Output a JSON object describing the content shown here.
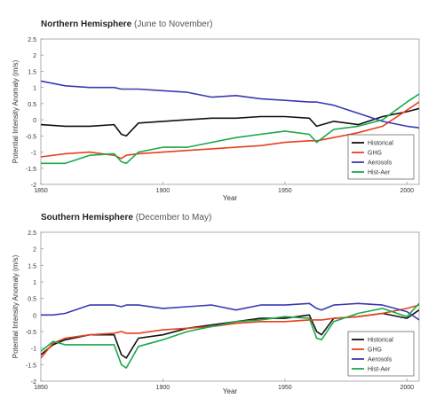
{
  "chart_data": [
    {
      "type": "line",
      "title": "Northern Hemisphere",
      "subtitle": "(June to November)",
      "xlabel": "Year",
      "ylabel": "Potential Intensity Anomaly  (m/s)",
      "xlim": [
        1850,
        2005
      ],
      "ylim": [
        -2,
        2.5
      ],
      "xticks": [
        "1850",
        "1900",
        "1950",
        "2000"
      ],
      "yticks": [
        "-2",
        "-1.5",
        "-1",
        "-0.5",
        "0",
        "0.5",
        "1",
        "1.5",
        "2",
        "2.5"
      ],
      "legend_position": "bottom-right",
      "x": [
        1850,
        1860,
        1870,
        1880,
        1883,
        1885,
        1890,
        1900,
        1910,
        1920,
        1930,
        1940,
        1950,
        1960,
        1963,
        1970,
        1980,
        1990,
        2000,
        2005
      ],
      "series": [
        {
          "name": "Historical",
          "color": "#111111",
          "values": [
            -0.15,
            -0.2,
            -0.2,
            -0.15,
            -0.45,
            -0.5,
            -0.1,
            -0.05,
            0.0,
            0.05,
            0.05,
            0.1,
            0.1,
            0.05,
            -0.2,
            -0.05,
            -0.15,
            0.1,
            0.25,
            0.35
          ]
        },
        {
          "name": "GHG",
          "color": "#e8401c",
          "values": [
            -1.15,
            -1.05,
            -1.0,
            -1.1,
            -1.2,
            -1.1,
            -1.05,
            -1.0,
            -0.95,
            -0.9,
            -0.85,
            -0.8,
            -0.7,
            -0.65,
            -0.65,
            -0.55,
            -0.4,
            -0.2,
            0.3,
            0.55
          ]
        },
        {
          "name": "Aerosols",
          "color": "#3a3ab0",
          "values": [
            1.2,
            1.05,
            1.0,
            1.0,
            0.95,
            0.95,
            0.95,
            0.9,
            0.85,
            0.7,
            0.75,
            0.65,
            0.6,
            0.55,
            0.55,
            0.45,
            0.2,
            -0.05,
            -0.2,
            -0.25
          ]
        },
        {
          "name": "Hist-Aer",
          "color": "#1aa84a",
          "values": [
            -1.35,
            -1.35,
            -1.1,
            -1.05,
            -1.3,
            -1.35,
            -1.0,
            -0.85,
            -0.85,
            -0.7,
            -0.55,
            -0.45,
            -0.35,
            -0.45,
            -0.7,
            -0.3,
            -0.2,
            0.0,
            0.55,
            0.8
          ]
        }
      ]
    },
    {
      "type": "line",
      "title": "Southern Hemisphere",
      "subtitle": "(December to May)",
      "xlabel": "Year",
      "ylabel": "Potential Intensity Anomaly  (m/s)",
      "xlim": [
        1850,
        2005
      ],
      "ylim": [
        -2,
        2.5
      ],
      "xticks": [
        "1850",
        "1900",
        "1950",
        "2000"
      ],
      "yticks": [
        "-2",
        "-1.5",
        "-1",
        "-0.5",
        "0",
        "0.5",
        "1",
        "1.5",
        "2",
        "2.5"
      ],
      "legend_position": "bottom-right",
      "x": [
        1850,
        1855,
        1860,
        1870,
        1880,
        1883,
        1885,
        1890,
        1900,
        1910,
        1920,
        1930,
        1940,
        1950,
        1960,
        1963,
        1965,
        1970,
        1980,
        1990,
        2000,
        2005
      ],
      "series": [
        {
          "name": "Historical",
          "color": "#111111",
          "values": [
            -1.2,
            -0.9,
            -0.75,
            -0.6,
            -0.6,
            -1.2,
            -1.3,
            -0.7,
            -0.6,
            -0.4,
            -0.3,
            -0.2,
            -0.1,
            -0.1,
            0.0,
            -0.5,
            -0.6,
            -0.1,
            -0.05,
            0.05,
            -0.1,
            0.15
          ]
        },
        {
          "name": "GHG",
          "color": "#e8401c",
          "values": [
            -1.3,
            -0.85,
            -0.7,
            -0.6,
            -0.55,
            -0.5,
            -0.55,
            -0.55,
            -0.45,
            -0.4,
            -0.35,
            -0.25,
            -0.2,
            -0.2,
            -0.15,
            -0.15,
            -0.15,
            -0.1,
            -0.05,
            0.05,
            0.2,
            0.3
          ]
        },
        {
          "name": "Aerosols",
          "color": "#3a3ab0",
          "values": [
            0.0,
            0.0,
            0.05,
            0.3,
            0.3,
            0.25,
            0.3,
            0.3,
            0.2,
            0.25,
            0.3,
            0.15,
            0.3,
            0.3,
            0.35,
            0.2,
            0.15,
            0.3,
            0.35,
            0.3,
            0.1,
            -0.15
          ]
        },
        {
          "name": "Hist-Aer",
          "color": "#1aa84a",
          "values": [
            -1.1,
            -0.8,
            -0.9,
            -0.9,
            -0.9,
            -1.5,
            -1.6,
            -0.95,
            -0.75,
            -0.5,
            -0.35,
            -0.2,
            -0.15,
            -0.05,
            -0.1,
            -0.7,
            -0.75,
            -0.2,
            0.05,
            0.2,
            -0.05,
            0.35
          ]
        }
      ]
    }
  ]
}
